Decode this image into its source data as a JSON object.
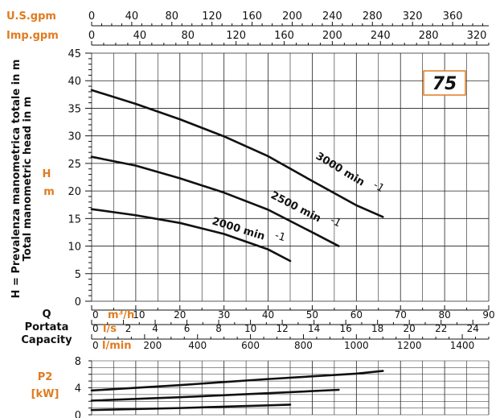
{
  "chart_data": [
    {
      "type": "line",
      "model_badge": "75",
      "top_axes": [
        {
          "label": "U.S.gpm",
          "ticks": [
            0,
            40,
            80,
            120,
            160,
            200,
            240,
            280,
            320,
            360
          ],
          "scale_max_at_90m3h": 396
        },
        {
          "label": "Imp.gpm",
          "ticks": [
            0,
            40,
            80,
            120,
            160,
            200,
            240,
            280,
            320
          ],
          "scale_max_at_90m3h": 330
        }
      ],
      "ylabel_main": "H = Prevalenza manometrica totale in m",
      "ylabel_sub": "Total manometric head in m",
      "ylabel_short": "H",
      "ylabel_unit": "m",
      "ylim": [
        0,
        45
      ],
      "yticks": [
        0,
        5,
        10,
        15,
        20,
        25,
        30,
        35,
        40,
        45
      ],
      "x_axis_title": [
        "Q",
        "Portata",
        "Capacity"
      ],
      "x_axes": [
        {
          "unit": "m³/h",
          "ticks": [
            0,
            10,
            20,
            30,
            40,
            50,
            60,
            70,
            80,
            90
          ],
          "scale_max": 90
        },
        {
          "unit": "l/s",
          "ticks": [
            0,
            2,
            4,
            6,
            8,
            10,
            12,
            14,
            16,
            18,
            20,
            22,
            24
          ],
          "scale_max": 25
        },
        {
          "unit": "l/min",
          "ticks": [
            0,
            200,
            400,
            600,
            800,
            1000,
            1200,
            1400
          ],
          "scale_max": 1500
        }
      ],
      "series": [
        {
          "name": "3000 min",
          "sup": "-1",
          "x": [
            0,
            10,
            20,
            30,
            40,
            50,
            60,
            66
          ],
          "y": [
            38.3,
            35.8,
            33.0,
            29.9,
            26.3,
            21.8,
            17.4,
            15.3
          ]
        },
        {
          "name": "2500 min",
          "sup": "-1",
          "x": [
            0,
            10,
            20,
            30,
            40,
            50,
            56
          ],
          "y": [
            26.2,
            24.6,
            22.3,
            19.7,
            16.6,
            12.5,
            10.0
          ]
        },
        {
          "name": "2000 min",
          "sup": "-1",
          "x": [
            0,
            10,
            20,
            30,
            40,
            45
          ],
          "y": [
            16.7,
            15.6,
            14.2,
            12.2,
            9.4,
            7.3
          ]
        }
      ]
    },
    {
      "type": "line",
      "ylabel": "P2",
      "yunit": "[kW]",
      "ylim": [
        0,
        8
      ],
      "yticks": [
        0,
        4,
        8
      ],
      "series": [
        {
          "name": "3000 min",
          "x": [
            0,
            20,
            40,
            60,
            66
          ],
          "y": [
            3.6,
            4.4,
            5.3,
            6.1,
            6.5
          ]
        },
        {
          "name": "2500 min",
          "x": [
            0,
            20,
            40,
            56
          ],
          "y": [
            2.1,
            2.6,
            3.2,
            3.7
          ]
        },
        {
          "name": "2000 min",
          "x": [
            0,
            20,
            40,
            45
          ],
          "y": [
            0.7,
            1.0,
            1.4,
            1.5
          ]
        }
      ]
    }
  ],
  "colors": {
    "accent": "#e07b20",
    "line": "#111111",
    "grid": "#222222"
  }
}
